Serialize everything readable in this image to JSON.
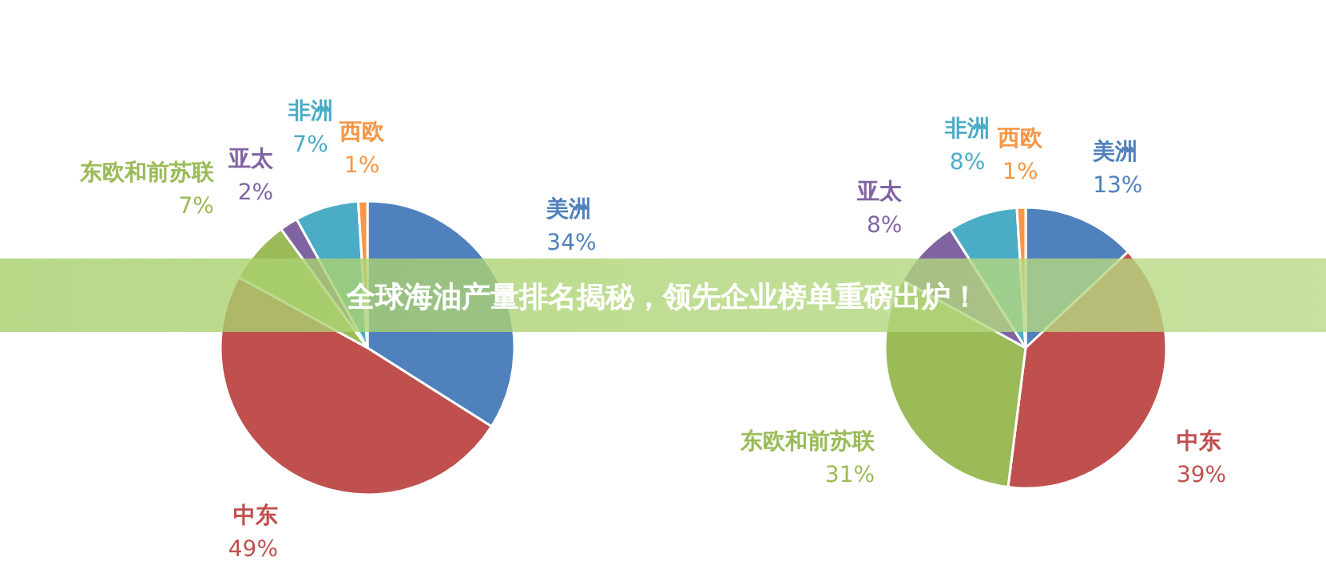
{
  "chart_data": [
    {
      "type": "pie",
      "title": "全球海油产量排名揭秘，领先企业榜单重磅出炉！",
      "categories": [
        "美洲",
        "中东",
        "东欧和前苏联",
        "亚太",
        "非洲",
        "西欧"
      ],
      "values": [
        34,
        49,
        7,
        2,
        7,
        1
      ],
      "value_labels": [
        "34%",
        "49%",
        "7%",
        "2%",
        "7%",
        "1%"
      ],
      "colors": [
        "#4f81bd",
        "#c0504d",
        "#9bbb59",
        "#8064a2",
        "#4bacc6",
        "#f79646"
      ]
    },
    {
      "type": "pie",
      "categories": [
        "美洲",
        "中东",
        "东欧和前苏联",
        "亚太",
        "非洲",
        "西欧"
      ],
      "values": [
        13,
        39,
        31,
        8,
        8,
        1
      ],
      "value_labels": [
        "13%",
        "39%",
        "31%",
        "8%",
        "8%",
        "1%"
      ],
      "colors": [
        "#4f81bd",
        "#c0504d",
        "#9bbb59",
        "#8064a2",
        "#4bacc6",
        "#f79646"
      ]
    }
  ]
}
